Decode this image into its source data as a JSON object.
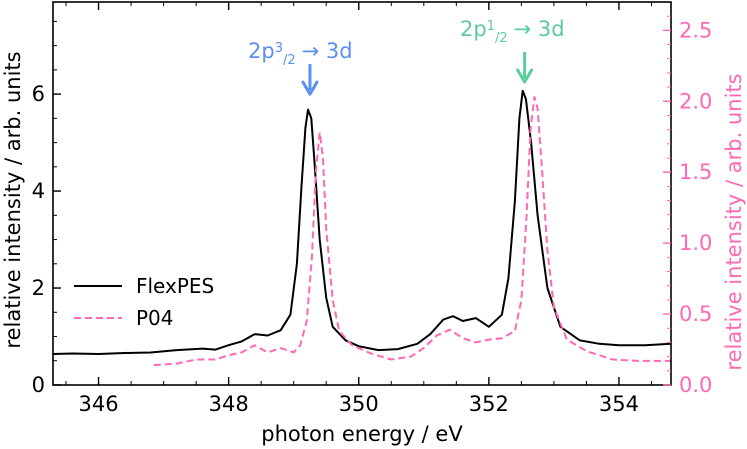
{
  "chart_data": {
    "type": "line",
    "xlabel": "photon energy / eV",
    "ylabel_left": "relative intensity / arb. units",
    "ylabel_right": "relative intensity / arb. units",
    "xlim": [
      345.3,
      354.8
    ],
    "ylim_left": [
      0,
      7.9
    ],
    "ylim_right": [
      0,
      2.7
    ],
    "x_ticks": [
      346,
      348,
      350,
      352,
      354
    ],
    "x_tick_labels": [
      "346",
      "348",
      "350",
      "352",
      "354"
    ],
    "y_left_ticks": [
      0,
      2,
      4,
      6
    ],
    "y_left_tick_labels": [
      "0",
      "2",
      "4",
      "6"
    ],
    "y_right_ticks": [
      0.0,
      0.5,
      1.0,
      1.5,
      2.0,
      2.5
    ],
    "y_right_tick_labels": [
      "0.0",
      "0.5",
      "1.0",
      "1.5",
      "2.0",
      "2.5"
    ],
    "colors": {
      "flexpes": "#000000",
      "p04": "#ff69b4",
      "right_axis": "#ff69b4",
      "annotation_left": "#5b8ff0",
      "annotation_right": "#5dcc9c"
    },
    "series": [
      {
        "name": "FlexPES",
        "axis": "left",
        "style": "solid",
        "points": [
          [
            345.3,
            0.64
          ],
          [
            345.6,
            0.65
          ],
          [
            346.0,
            0.64
          ],
          [
            346.4,
            0.66
          ],
          [
            346.8,
            0.67
          ],
          [
            347.2,
            0.72
          ],
          [
            347.6,
            0.75
          ],
          [
            347.8,
            0.73
          ],
          [
            348.0,
            0.82
          ],
          [
            348.2,
            0.9
          ],
          [
            348.4,
            1.05
          ],
          [
            348.6,
            1.02
          ],
          [
            348.8,
            1.13
          ],
          [
            348.95,
            1.45
          ],
          [
            349.05,
            2.5
          ],
          [
            349.12,
            4.1
          ],
          [
            349.18,
            5.3
          ],
          [
            349.22,
            5.68
          ],
          [
            349.27,
            5.5
          ],
          [
            349.32,
            4.6
          ],
          [
            349.4,
            3.0
          ],
          [
            349.5,
            1.8
          ],
          [
            349.6,
            1.2
          ],
          [
            349.8,
            0.92
          ],
          [
            350.0,
            0.8
          ],
          [
            350.3,
            0.72
          ],
          [
            350.6,
            0.74
          ],
          [
            350.9,
            0.85
          ],
          [
            351.1,
            1.05
          ],
          [
            351.3,
            1.35
          ],
          [
            351.45,
            1.42
          ],
          [
            351.6,
            1.32
          ],
          [
            351.8,
            1.38
          ],
          [
            352.0,
            1.2
          ],
          [
            352.2,
            1.45
          ],
          [
            352.3,
            2.2
          ],
          [
            352.4,
            3.8
          ],
          [
            352.47,
            5.5
          ],
          [
            352.52,
            6.07
          ],
          [
            352.57,
            5.9
          ],
          [
            352.65,
            5.0
          ],
          [
            352.75,
            3.5
          ],
          [
            352.9,
            2.0
          ],
          [
            353.1,
            1.2
          ],
          [
            353.4,
            0.92
          ],
          [
            353.7,
            0.85
          ],
          [
            354.0,
            0.82
          ],
          [
            354.4,
            0.82
          ],
          [
            354.8,
            0.85
          ]
        ]
      },
      {
        "name": "P04",
        "axis": "right",
        "style": "dashed",
        "points": [
          [
            346.85,
            0.14
          ],
          [
            347.2,
            0.15
          ],
          [
            347.5,
            0.18
          ],
          [
            347.8,
            0.18
          ],
          [
            348.0,
            0.21
          ],
          [
            348.2,
            0.23
          ],
          [
            348.4,
            0.28
          ],
          [
            348.6,
            0.23
          ],
          [
            348.8,
            0.26
          ],
          [
            349.0,
            0.23
          ],
          [
            349.1,
            0.28
          ],
          [
            349.2,
            0.45
          ],
          [
            349.28,
            0.9
          ],
          [
            349.34,
            1.5
          ],
          [
            349.4,
            1.78
          ],
          [
            349.45,
            1.6
          ],
          [
            349.5,
            1.1
          ],
          [
            349.6,
            0.6
          ],
          [
            349.7,
            0.38
          ],
          [
            349.9,
            0.28
          ],
          [
            350.2,
            0.22
          ],
          [
            350.5,
            0.18
          ],
          [
            350.8,
            0.2
          ],
          [
            351.0,
            0.26
          ],
          [
            351.2,
            0.35
          ],
          [
            351.4,
            0.39
          ],
          [
            351.6,
            0.33
          ],
          [
            351.8,
            0.3
          ],
          [
            352.0,
            0.32
          ],
          [
            352.2,
            0.33
          ],
          [
            352.4,
            0.38
          ],
          [
            352.5,
            0.6
          ],
          [
            352.58,
            1.2
          ],
          [
            352.64,
            1.8
          ],
          [
            352.7,
            2.03
          ],
          [
            352.75,
            1.95
          ],
          [
            352.82,
            1.5
          ],
          [
            352.9,
            0.95
          ],
          [
            353.0,
            0.55
          ],
          [
            353.2,
            0.32
          ],
          [
            353.5,
            0.24
          ],
          [
            353.9,
            0.18
          ],
          [
            354.3,
            0.17
          ],
          [
            354.8,
            0.17
          ]
        ]
      }
    ],
    "legend": {
      "position": "lower-left",
      "entries": [
        {
          "label": "FlexPES",
          "style": "solid"
        },
        {
          "label": "P04",
          "style": "dashed"
        }
      ]
    },
    "annotations": [
      {
        "main": "2p",
        "sup": "3",
        "sub": "2",
        "arrow_text": "→ 3d",
        "x": 349.25,
        "color_key": "annotation_left",
        "arrow_tip_y": 6.0
      },
      {
        "main": "2p",
        "sup": "1",
        "sub": "2",
        "arrow_text": "→ 3d",
        "x": 352.55,
        "color_key": "annotation_right",
        "arrow_tip_y": 6.25
      }
    ]
  }
}
